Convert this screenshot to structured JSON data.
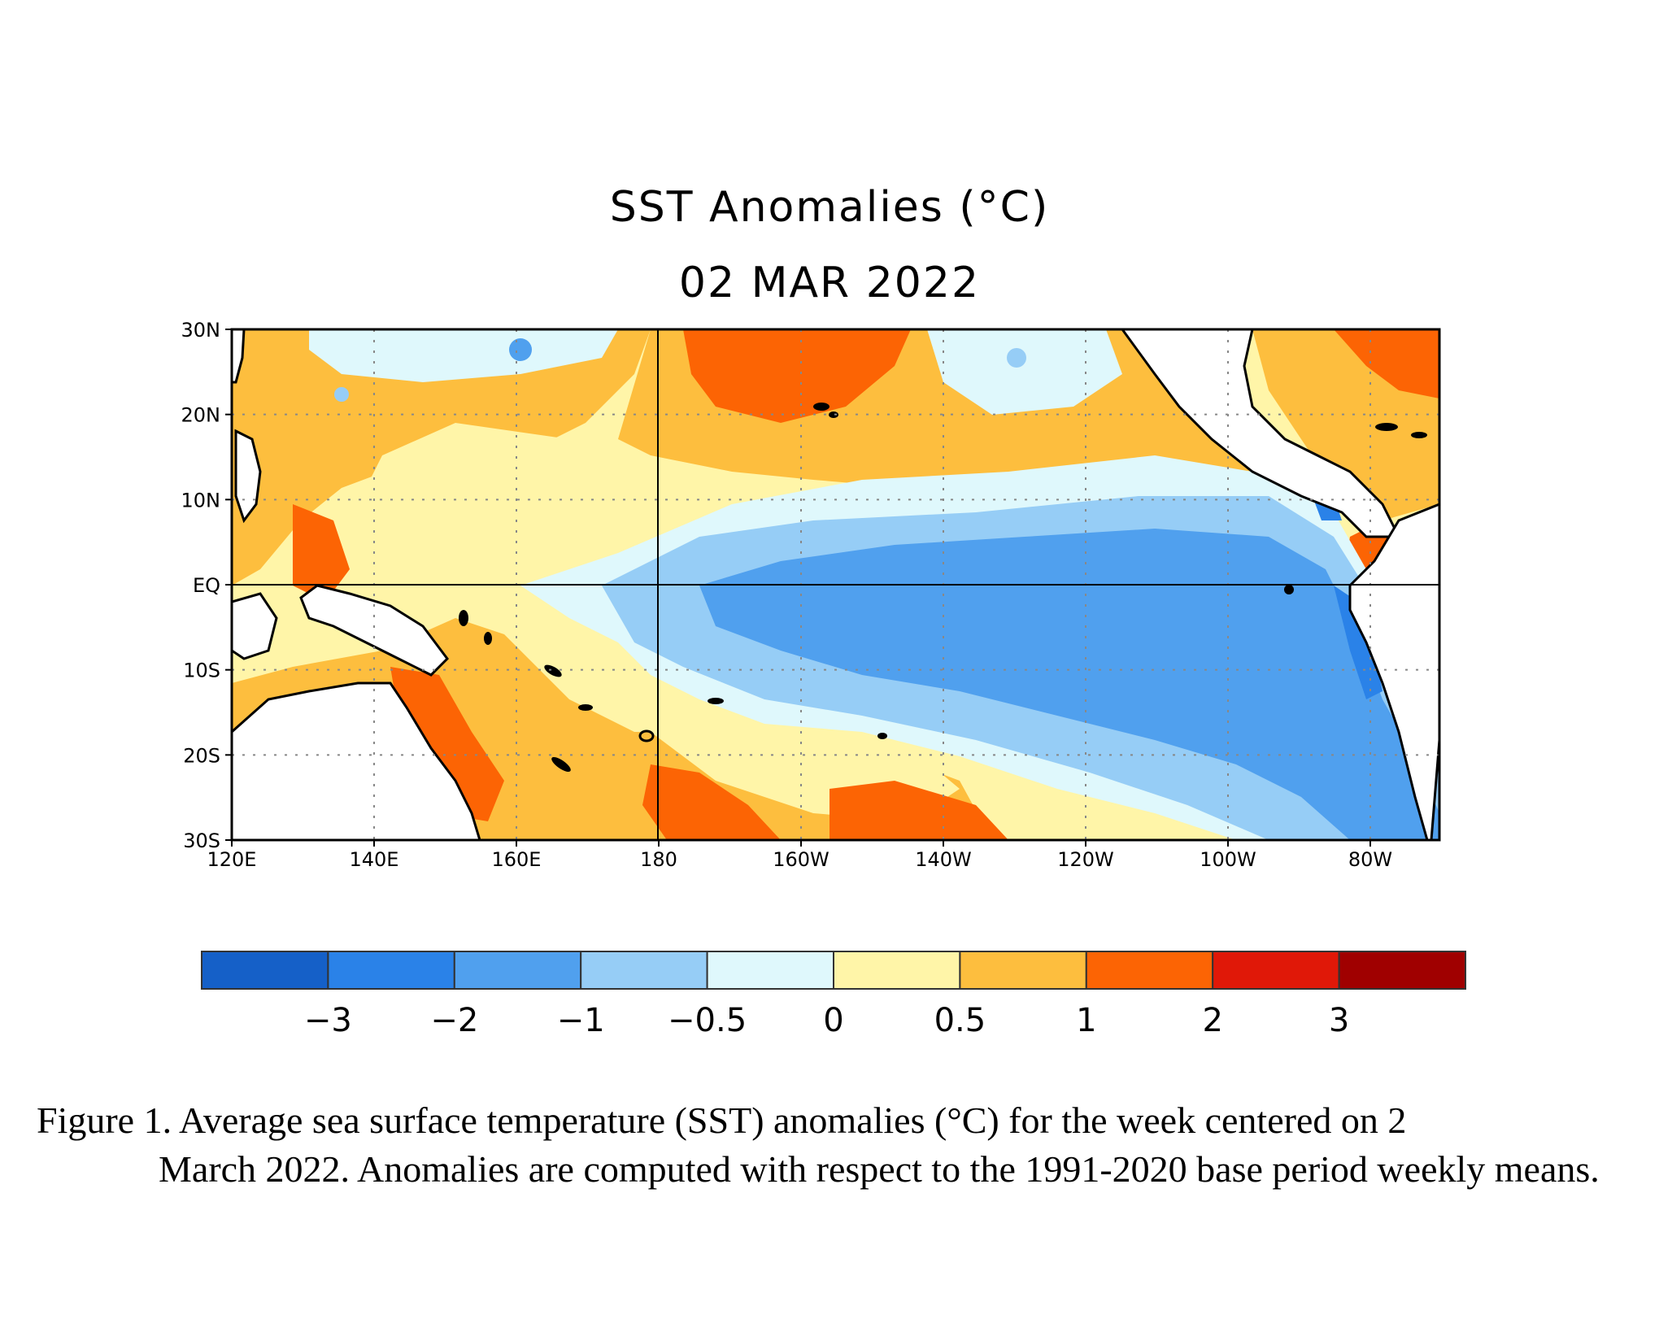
{
  "title": "SST Anomalies (°C)",
  "date": "02 MAR 2022",
  "map": {
    "region": "Tropical Pacific",
    "lat_ticks": [
      "30N",
      "20N",
      "10N",
      "EQ",
      "10S",
      "20S",
      "30S"
    ],
    "lon_ticks": [
      "120E",
      "140E",
      "160E",
      "180",
      "160W",
      "140W",
      "120W",
      "100W",
      "80W"
    ]
  },
  "colorbar": {
    "colors": [
      "#1560c8",
      "#2a82e8",
      "#50a0ee",
      "#96cdf6",
      "#dff8fc",
      "#fff5a8",
      "#fdbe3e",
      "#fc6404",
      "#e01808",
      "#a00000"
    ],
    "labels": [
      "−3",
      "−2",
      "−1",
      "−0.5",
      "0",
      "0.5",
      "1",
      "2",
      "3"
    ],
    "values": [
      -3,
      -2,
      -1,
      -0.5,
      0,
      0.5,
      1,
      2,
      3
    ]
  },
  "caption": {
    "first": "Figure 1. Average sea surface temperature (SST) anomalies (°C) for the week centered on 2",
    "rest": "March 2022.  Anomalies are computed with respect to the 1991-2020 base period weekly means."
  }
}
